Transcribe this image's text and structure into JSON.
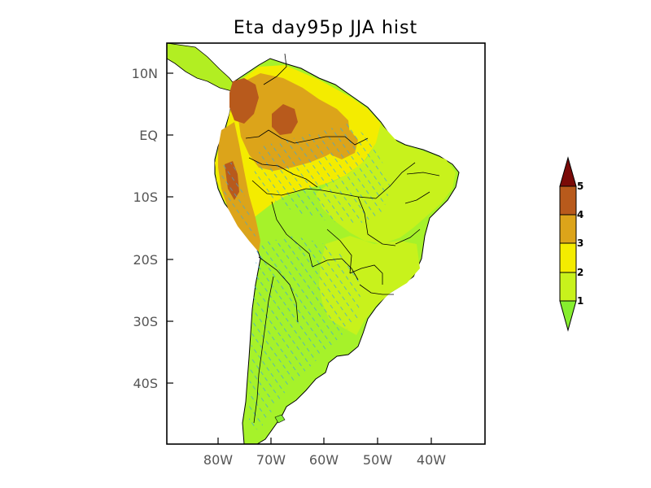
{
  "title": "Eta  day95p JJA hist",
  "map": {
    "region": "South America",
    "lat_ticks": [
      "10N",
      "EQ",
      "10S",
      "20S",
      "30S",
      "40S"
    ],
    "lon_ticks": [
      "80W",
      "70W",
      "60W",
      "50W",
      "40W"
    ],
    "land_color_default": "#a6f22a",
    "ocean_color": "#ffffff",
    "hatch_color": "#3aa6e0"
  },
  "colorbar": {
    "ticks": [
      "1",
      "2",
      "3",
      "4",
      "5"
    ],
    "colors": [
      "#86ef2e",
      "#c8f21c",
      "#f4ec00",
      "#dca41a",
      "#b85a1c",
      "#7a0a08"
    ]
  }
}
